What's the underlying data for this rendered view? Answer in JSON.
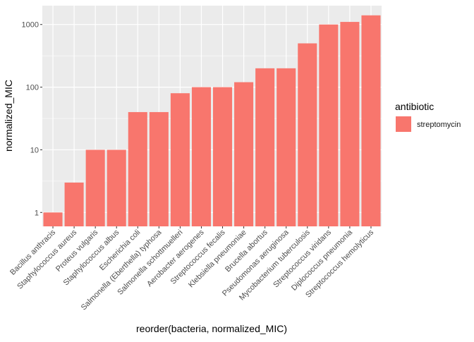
{
  "chart_data": {
    "type": "bar",
    "title": "",
    "xlabel": "reorder(bacteria, normalized_MIC)",
    "ylabel": "normalized_MIC",
    "y_scale": "log10",
    "ylim": [
      0.6,
      2000
    ],
    "y_ticks": [
      1,
      10,
      100,
      1000
    ],
    "y_tick_labels": [
      "1",
      "10",
      "100",
      "1000"
    ],
    "grid": true,
    "legend_position": "right",
    "legend_title": "antibiotic",
    "categories": [
      "Bacillus anthracis",
      "Staphylococcus aureus",
      "Proteus vulgaris",
      "Staphylococcus albus",
      "Escherichia coli",
      "Salmonella (Eberthella) typhosa",
      "Salmonella schottmuelleri",
      "Aerobacter aerogenes",
      "Streptococcus fecalis",
      "Klebsiella pneumoniae",
      "Brucella abortus",
      "Pseudomonas aeruginosa",
      "Mycobacterium tuberculosis",
      "Streptococcus viridans",
      "Diplococcus pneumonia",
      "Streptococcus hemolyticus"
    ],
    "series": [
      {
        "name": "streptomycin",
        "color": "#F8766D",
        "values": [
          1,
          3,
          10,
          10,
          40,
          40,
          80,
          100,
          100,
          120,
          200,
          200,
          500,
          1000,
          1100,
          1400
        ]
      }
    ]
  }
}
